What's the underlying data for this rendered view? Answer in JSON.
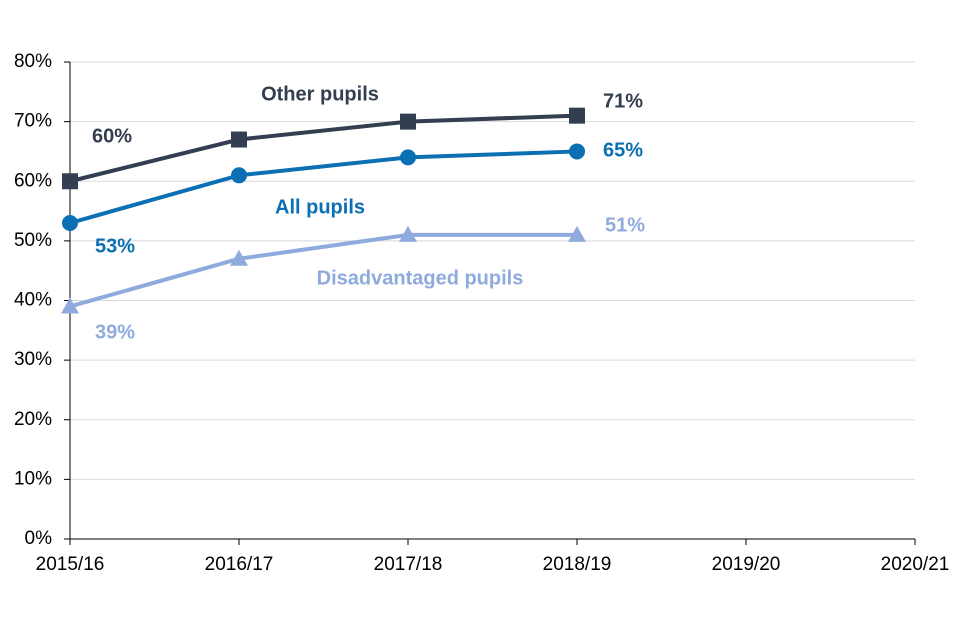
{
  "chart_data": {
    "type": "line",
    "categories": [
      "2015/16",
      "2016/17",
      "2017/18",
      "2018/19",
      "2019/20",
      "2020/21"
    ],
    "series": [
      {
        "name": "Other pupils",
        "color": "#333f50",
        "marker": "square",
        "values": [
          60,
          67,
          70,
          71,
          null,
          null
        ],
        "value_labels": [
          "60%",
          null,
          null,
          "71%",
          null,
          null
        ]
      },
      {
        "name": "All pupils",
        "color": "#0b6fb3",
        "marker": "circle",
        "values": [
          53,
          61,
          64,
          65,
          null,
          null
        ],
        "value_labels": [
          "53%",
          null,
          null,
          "65%",
          null,
          null
        ]
      },
      {
        "name": "Disadvantaged pupils",
        "color": "#8faadc",
        "marker": "triangle",
        "values": [
          39,
          47,
          51,
          51,
          null,
          null
        ],
        "value_labels": [
          "39%",
          null,
          null,
          "51%",
          null,
          null
        ]
      }
    ],
    "ylim": [
      0,
      80
    ],
    "yticks": [
      {
        "value": 0,
        "label": "0%"
      },
      {
        "value": 10,
        "label": "10%"
      },
      {
        "value": 20,
        "label": "20%"
      },
      {
        "value": 30,
        "label": "30%"
      },
      {
        "value": 40,
        "label": "40%"
      },
      {
        "value": 50,
        "label": "50%"
      },
      {
        "value": 60,
        "label": "60%"
      },
      {
        "value": 70,
        "label": "70%"
      },
      {
        "value": 80,
        "label": "80%"
      }
    ],
    "grid": true
  }
}
